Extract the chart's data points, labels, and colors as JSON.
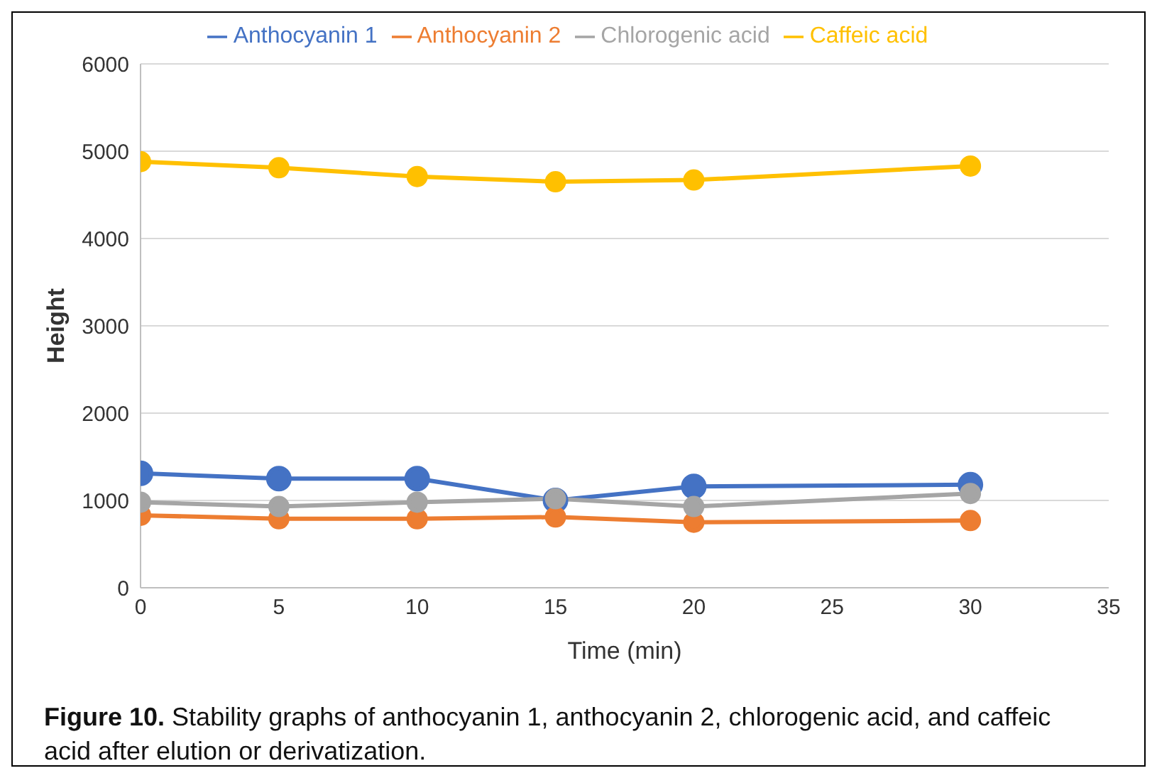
{
  "chart_data": {
    "type": "line",
    "xlabel": "Time (min)",
    "ylabel": "Height",
    "x": [
      0,
      5,
      10,
      15,
      20,
      30
    ],
    "series": [
      {
        "name": "Anthocyanin 1",
        "color": "#4472c4",
        "values": [
          1310,
          1250,
          1250,
          1000,
          1160,
          1180
        ]
      },
      {
        "name": "Anthocyanin 2",
        "color": "#ed7d31",
        "values": [
          830,
          790,
          790,
          810,
          750,
          770
        ]
      },
      {
        "name": "Chlorogenic acid",
        "color": "#a5a5a5",
        "values": [
          980,
          930,
          980,
          1020,
          930,
          1080
        ]
      },
      {
        "name": "Caffeic acid",
        "color": "#ffc000",
        "values": [
          4880,
          4810,
          4710,
          4650,
          4670,
          4830
        ]
      }
    ],
    "xlim": [
      0,
      35
    ],
    "xticks": [
      0,
      5,
      10,
      15,
      20,
      25,
      30,
      35
    ],
    "ylim": [
      0,
      6000
    ],
    "yticks": [
      0,
      1000,
      2000,
      3000,
      4000,
      5000,
      6000
    ],
    "grid": "y",
    "legend": "top",
    "marker": "circle",
    "line_style": "solid",
    "annotations": [
      "Figure 10.",
      "Stability graphs of anthocyanin 1, anthocyanin 2, chlorogenic acid, and caffeic acid after elution or derivatization."
    ]
  }
}
